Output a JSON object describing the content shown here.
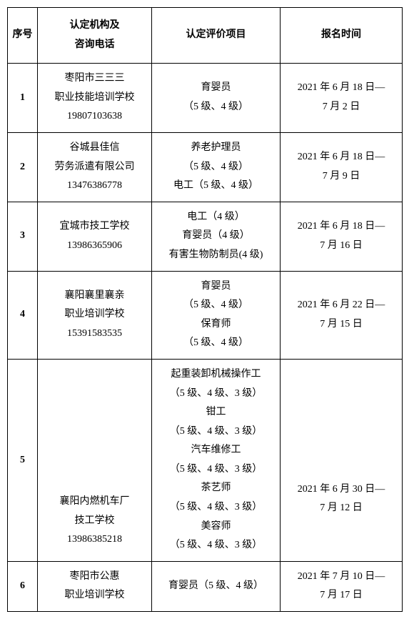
{
  "header": {
    "seq": "序号",
    "org": "认定机构及\n咨询电话",
    "item": "认定评价项目",
    "date": "报名时间"
  },
  "rows": [
    {
      "seq": "1",
      "org": "枣阳市三三三\n职业技能培训学校\n19807103638",
      "item": "育婴员\n（5 级、4 级）",
      "date": "2021 年 6 月 18 日—\n7 月 2 日"
    },
    {
      "seq": "2",
      "org": "谷城县佳信\n劳务派遣有限公司\n13476386778",
      "item": "养老护理员\n（5 级、4 级）\n电工（5 级、4 级）",
      "date": "2021 年 6 月 18 日—\n7 月 9 日"
    },
    {
      "seq": "3",
      "org": "宜城市技工学校\n13986365906",
      "item": "电工（4 级）\n育婴员（4 级）\n有害生物防制员(4 级)",
      "date": "2021 年 6 月 18 日—\n7 月 16 日"
    },
    {
      "seq": "4",
      "org": "襄阳襄里襄亲\n职业培训学校\n15391583535",
      "item": "育婴员\n（5 级、4 级）\n保育师\n（5 级、4 级）",
      "date": "2021 年 6 月 22 日—\n7 月 15 日"
    },
    {
      "seq": "5",
      "org": "襄阳内燃机车厂\n技工学校\n13986385218",
      "item": "起重装卸机械操作工\n（5 级、4 级、3 级）\n钳工\n（5 级、4 级、3 级）\n汽车维修工\n（5 级、4 级、3 级）\n茶艺师\n（5 级、4 级、3 级）\n美容师\n（5 级、4 级、3 级）",
      "date": "2021 年 6 月 30 日—\n7 月 12 日"
    },
    {
      "seq": "6",
      "org": "枣阳市公惠\n职业培训学校",
      "item": "育婴员（5 级、4 级）",
      "date": "2021 年 7 月 10 日—\n7 月 17 日"
    }
  ],
  "row5_org_valign": "bottom"
}
